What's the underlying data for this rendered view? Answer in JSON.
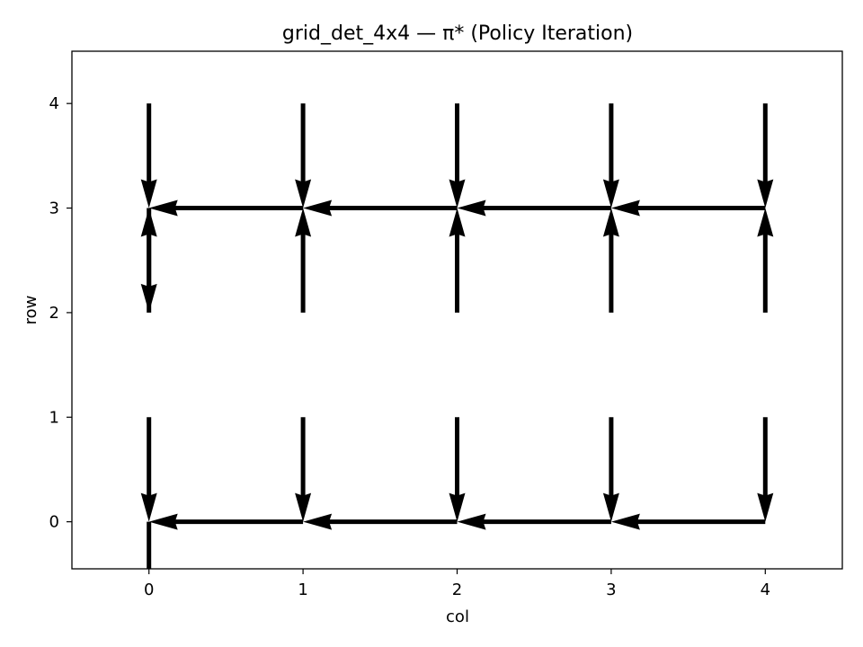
{
  "chart_data": {
    "type": "quiver",
    "title": "grid_det_4x4 — π* (Policy Iteration)",
    "xlabel": "col",
    "ylabel": "row",
    "xlim": [
      -0.5,
      4.5
    ],
    "ylim": [
      -0.45,
      4.5
    ],
    "xticks": [
      0,
      1,
      2,
      3,
      4
    ],
    "yticks": [
      0,
      1,
      2,
      3,
      4
    ],
    "grid": false,
    "arrow_color": "#000000",
    "arrows": [
      {
        "col": 0,
        "row": 0,
        "dx": 0,
        "dy": -1
      },
      {
        "col": 1,
        "row": 0,
        "dx": -1,
        "dy": 0
      },
      {
        "col": 2,
        "row": 0,
        "dx": -1,
        "dy": 0
      },
      {
        "col": 3,
        "row": 0,
        "dx": -1,
        "dy": 0
      },
      {
        "col": 4,
        "row": 0,
        "dx": -1,
        "dy": 0
      },
      {
        "col": 0,
        "row": 1,
        "dx": 0,
        "dy": -1
      },
      {
        "col": 1,
        "row": 1,
        "dx": 0,
        "dy": -1
      },
      {
        "col": 2,
        "row": 1,
        "dx": 0,
        "dy": -1
      },
      {
        "col": 3,
        "row": 1,
        "dx": 0,
        "dy": -1
      },
      {
        "col": 4,
        "row": 1,
        "dx": 0,
        "dy": -1
      },
      {
        "col": 0,
        "row": 2,
        "dx": 0,
        "dy": 1
      },
      {
        "col": 1,
        "row": 2,
        "dx": 0,
        "dy": 1
      },
      {
        "col": 2,
        "row": 2,
        "dx": 0,
        "dy": 1
      },
      {
        "col": 3,
        "row": 2,
        "dx": 0,
        "dy": 1
      },
      {
        "col": 4,
        "row": 2,
        "dx": 0,
        "dy": 1
      },
      {
        "col": 0,
        "row": 3,
        "dx": 0,
        "dy": -1
      },
      {
        "col": 1,
        "row": 3,
        "dx": -1,
        "dy": 0
      },
      {
        "col": 2,
        "row": 3,
        "dx": -1,
        "dy": 0
      },
      {
        "col": 3,
        "row": 3,
        "dx": -1,
        "dy": 0
      },
      {
        "col": 4,
        "row": 3,
        "dx": -1,
        "dy": 0
      },
      {
        "col": 0,
        "row": 4,
        "dx": 0,
        "dy": -1
      },
      {
        "col": 1,
        "row": 4,
        "dx": 0,
        "dy": -1
      },
      {
        "col": 2,
        "row": 4,
        "dx": 0,
        "dy": -1
      },
      {
        "col": 3,
        "row": 4,
        "dx": 0,
        "dy": -1
      },
      {
        "col": 4,
        "row": 4,
        "dx": 0,
        "dy": -1
      }
    ]
  }
}
